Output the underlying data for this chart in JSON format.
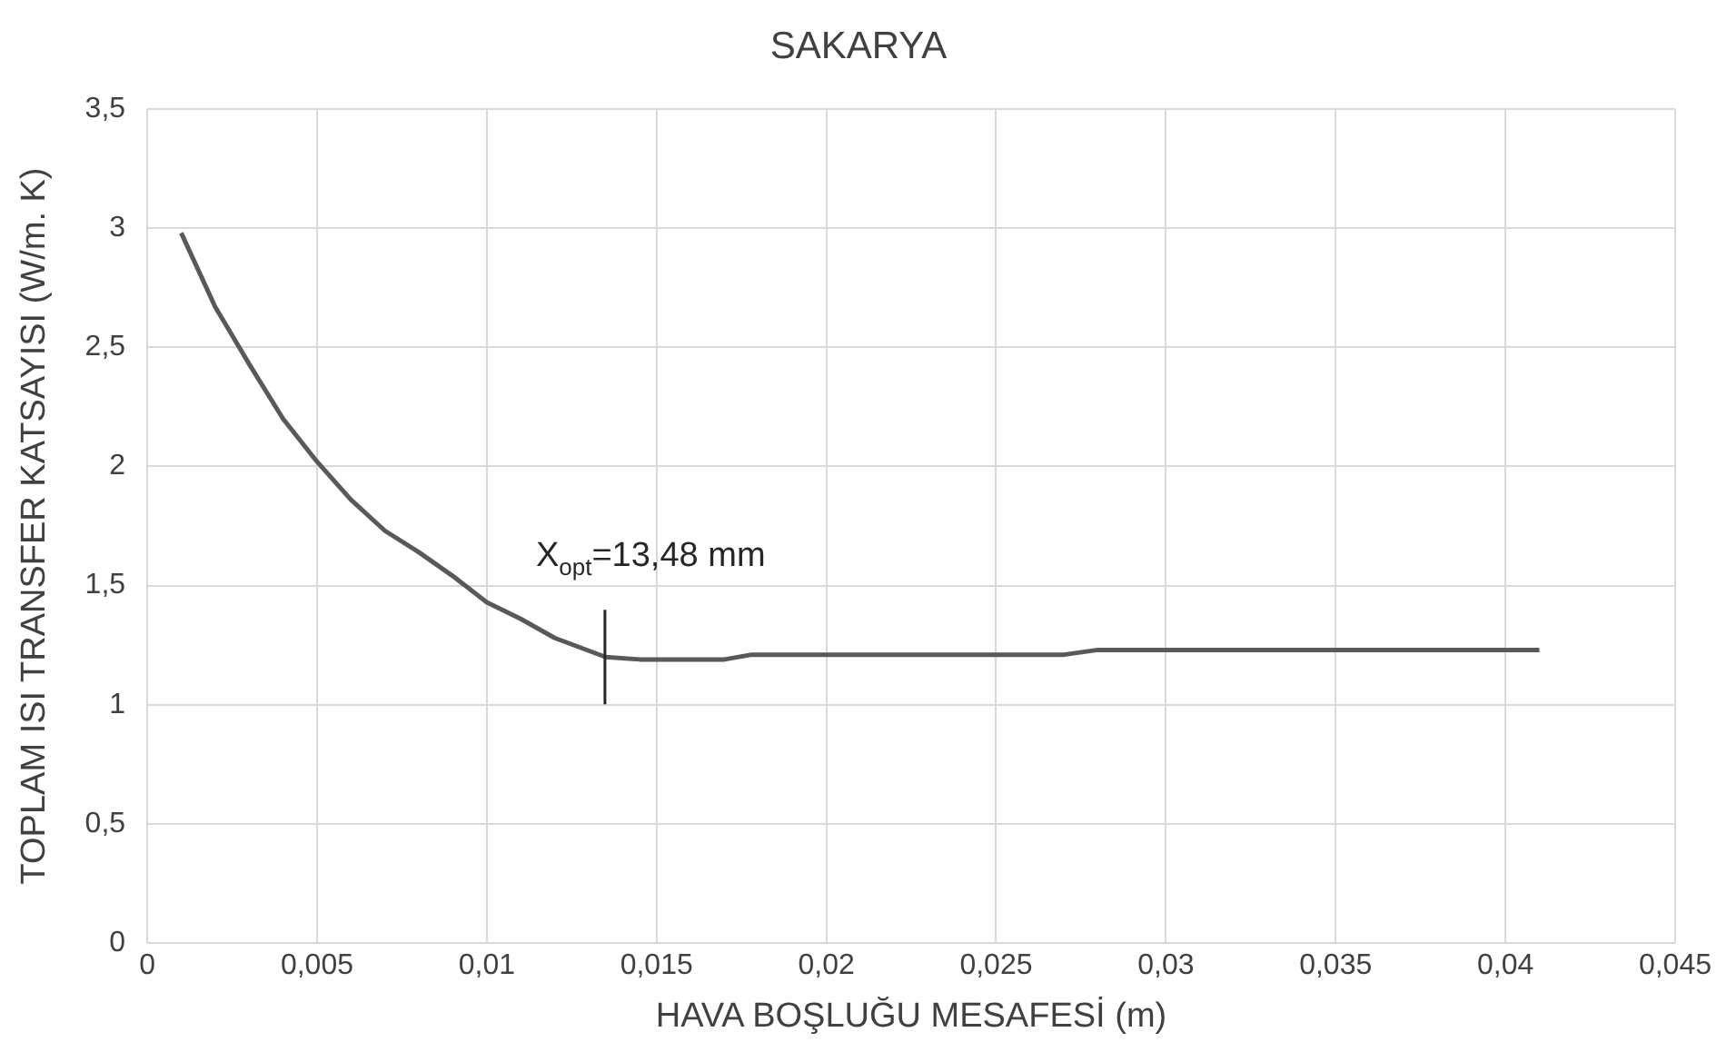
{
  "chart_data": {
    "type": "line",
    "title": "SAKARYA",
    "xlabel": "HAVA BOŞLUĞU MESAFESİ (m)",
    "ylabel": "TOPLAM ISI TRANSFER KATSAYISI (W/m. K)",
    "series": [
      {
        "color": "#595959",
        "x": [
          0.001,
          0.002,
          0.003,
          0.004,
          0.005,
          0.006,
          0.007,
          0.008,
          0.009,
          0.01,
          0.011,
          0.012,
          0.0135,
          0.0145,
          0.017,
          0.0178,
          0.027,
          0.028,
          0.041
        ],
        "values": [
          2.98,
          2.67,
          2.43,
          2.2,
          2.02,
          1.86,
          1.73,
          1.64,
          1.54,
          1.43,
          1.36,
          1.28,
          1.2,
          1.19,
          1.19,
          1.21,
          1.21,
          1.23,
          1.23
        ]
      }
    ],
    "annotations": [
      {
        "text": "X$_{opt}$=13,48 mm",
        "x": 0.01348,
        "y": 1.2
      }
    ],
    "xlim": [
      0,
      0.045
    ],
    "ylim": [
      0,
      3.5
    ],
    "xticks": [
      0,
      {
        "value": 0.005,
        "label": "0,005"
      },
      {
        "value": 0.01,
        "label": "0,01"
      },
      {
        "value": 0.015,
        "label": "0,015"
      },
      {
        "value": 0.02,
        "label": "0,02"
      },
      {
        "value": 0.025,
        "label": "0,025"
      },
      {
        "value": 0.03,
        "label": "0,03"
      },
      {
        "value": 0.035,
        "label": "0,035"
      },
      {
        "value": 0.04,
        "label": "0,04"
      },
      {
        "value": 0.045,
        "label": "0,045"
      }
    ],
    "yticks": [
      0,
      {
        "value": 0.5,
        "label": "0,5"
      },
      1,
      {
        "value": 1.5,
        "label": "1,5"
      },
      2,
      {
        "value": 2.5,
        "label": "2,5"
      },
      3,
      {
        "value": 3.5,
        "label": "3,5"
      }
    ],
    "grid": true,
    "legend": false,
    "marker": "none",
    "line_style": "solid"
  }
}
